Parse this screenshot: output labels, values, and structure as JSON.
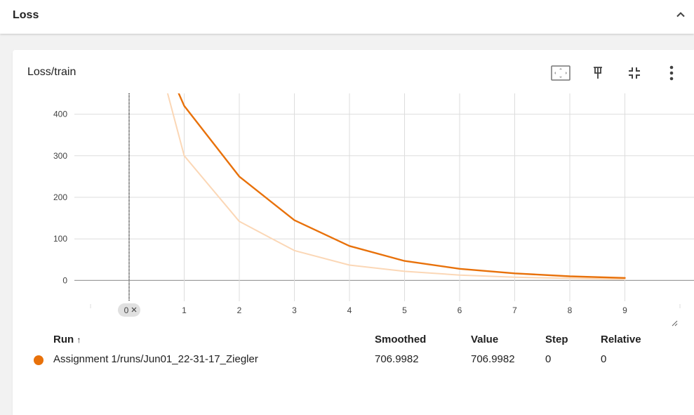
{
  "section": {
    "title": "Loss"
  },
  "card": {
    "title": "Loss/train",
    "toolbar": [
      "fit-to-data-icon",
      "pin-icon",
      "collapse-icon",
      "more-vert-icon"
    ]
  },
  "colors": {
    "smoothed": "#e8710a",
    "raw": "#fbd7b6",
    "grid": "#dddddd",
    "axis": "#9e9e9e"
  },
  "chart_data": {
    "type": "line",
    "title": "Loss/train",
    "xlabel": "",
    "ylabel": "",
    "xlim": [
      -1,
      10
    ],
    "ylim": [
      -50,
      450
    ],
    "x_ticks": [
      "1",
      "2",
      "3",
      "4",
      "5",
      "6",
      "7",
      "8",
      "9"
    ],
    "y_ticks": [
      "0",
      "100",
      "200",
      "300",
      "400"
    ],
    "zero_marker_label": "0",
    "grid": true,
    "series": [
      {
        "role": "smoothed",
        "x": [
          0.9,
          1,
          2,
          3,
          4,
          5,
          6,
          7,
          8,
          9
        ],
        "y": [
          450,
          420,
          250,
          145,
          83,
          47,
          28,
          17,
          10,
          6
        ]
      },
      {
        "role": "raw",
        "x": [
          0.7,
          1,
          2,
          3,
          4,
          5,
          6,
          7,
          8,
          9
        ],
        "y": [
          450,
          300,
          142,
          72,
          37,
          22,
          13,
          8,
          5,
          3
        ]
      }
    ]
  },
  "table": {
    "headers": {
      "run": "Run",
      "run_sort": "↑",
      "smoothed": "Smoothed",
      "value": "Value",
      "step": "Step",
      "relative": "Relative"
    },
    "rows": [
      {
        "run": "Assignment 1/runs/Jun01_22-31-17_Ziegler",
        "smoothed": "706.9982",
        "value": "706.9982",
        "step": "0",
        "relative": "0"
      }
    ]
  }
}
